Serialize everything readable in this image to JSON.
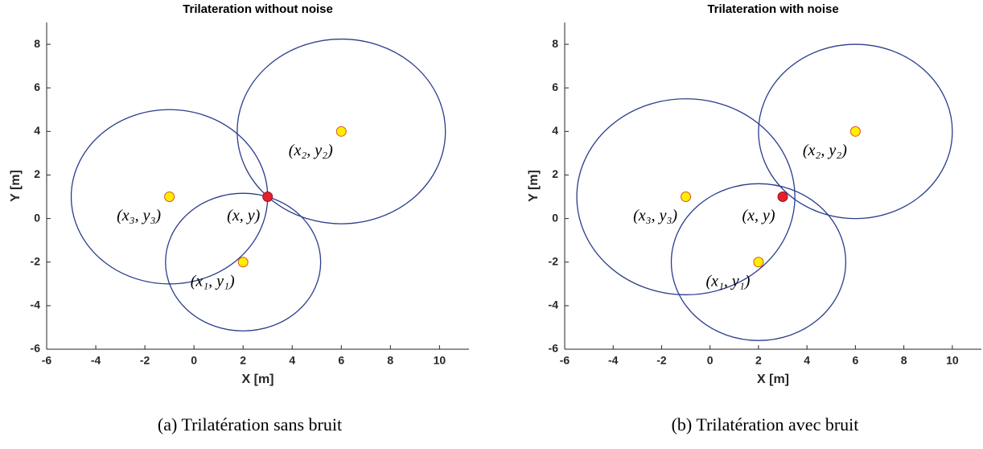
{
  "chart_data": [
    {
      "type": "scatter",
      "title": "Trilateration without noise",
      "xlabel": "X [m]",
      "ylabel": "Y [m]",
      "caption": "(a) Trilatération sans bruit",
      "anchors": {
        "x": [
          2,
          6,
          -1
        ],
        "y": [
          -2,
          4,
          1
        ],
        "labels": [
          "(x₁, y₁)",
          "(x₂, y₂)",
          "(x₃, y₃)"
        ]
      },
      "radii": [
        3.16,
        4.24,
        4
      ],
      "target": {
        "x": [
          3
        ],
        "y": [
          1
        ],
        "labels": [
          "(x, y)"
        ]
      },
      "circle_color": "#2b3d8c",
      "anchor_color": "#ffee00",
      "anchor_edge": "#d9541a",
      "target_color": "#e3202b",
      "xlim": [
        -6,
        11.2
      ],
      "xticks": [
        -6,
        -4,
        -2,
        0,
        2,
        4,
        6,
        8,
        10
      ],
      "ylim": [
        -6,
        9
      ],
      "yticks": [
        -6,
        -4,
        -2,
        0,
        2,
        4,
        6,
        8
      ]
    },
    {
      "type": "scatter",
      "title": "Trilateration with noise",
      "xlabel": "X [m]",
      "ylabel": "Y [m]",
      "caption": "(b) Trilatération avec bruit",
      "anchors": {
        "x": [
          2,
          6,
          -1
        ],
        "y": [
          -2,
          4,
          1
        ],
        "labels": [
          "(x₁, y₁)",
          "(x₂, y₂)",
          "(x₃, y₃)"
        ]
      },
      "radii": [
        3.6,
        4,
        4.5
      ],
      "target": {
        "x": [
          3
        ],
        "y": [
          1
        ],
        "labels": [
          "(x, y)"
        ]
      },
      "circle_color": "#2b3d8c",
      "anchor_color": "#ffee00",
      "anchor_edge": "#d9541a",
      "target_color": "#e3202b",
      "xlim": [
        -6,
        11.2
      ],
      "xticks": [
        -6,
        -4,
        -2,
        0,
        2,
        4,
        6,
        8,
        10
      ],
      "ylim": [
        -6,
        9
      ],
      "yticks": [
        -6,
        -4,
        -2,
        0,
        2,
        4,
        6,
        8
      ]
    }
  ]
}
